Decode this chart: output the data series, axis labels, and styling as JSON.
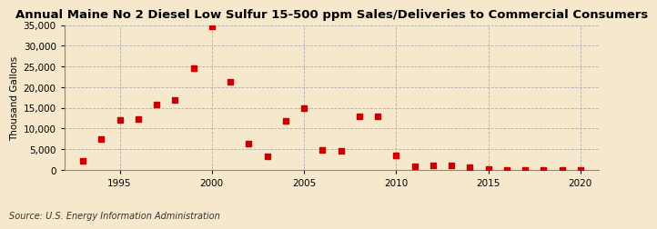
{
  "title": "Annual Maine No 2 Diesel Low Sulfur 15-500 ppm Sales/Deliveries to Commercial Consumers",
  "ylabel": "Thousand Gallons",
  "source": "Source: U.S. Energy Information Administration",
  "background_color": "#f5e8cc",
  "years": [
    1993,
    1994,
    1995,
    1996,
    1997,
    1998,
    1999,
    2000,
    2001,
    2002,
    2003,
    2004,
    2005,
    2006,
    2007,
    2008,
    2009,
    2010,
    2011,
    2012,
    2013,
    2014,
    2015,
    2016,
    2017,
    2018,
    2019,
    2020
  ],
  "values": [
    2200,
    7400,
    12100,
    12200,
    15800,
    16800,
    24600,
    34700,
    21300,
    6300,
    3300,
    11900,
    14900,
    4900,
    4500,
    13000,
    13000,
    3500,
    900,
    1100,
    1100,
    600,
    200,
    100,
    100,
    100,
    100,
    100
  ],
  "marker_color": "#cc0000",
  "marker_size": 18,
  "grid_color": "#aaaaaa",
  "xlim": [
    1992,
    2021
  ],
  "ylim": [
    0,
    35000
  ],
  "yticks": [
    0,
    5000,
    10000,
    15000,
    20000,
    25000,
    30000,
    35000
  ],
  "xticks": [
    1995,
    2000,
    2005,
    2010,
    2015,
    2020
  ],
  "title_fontsize": 9.5,
  "ylabel_fontsize": 7.5,
  "tick_fontsize": 7.5,
  "source_fontsize": 7
}
